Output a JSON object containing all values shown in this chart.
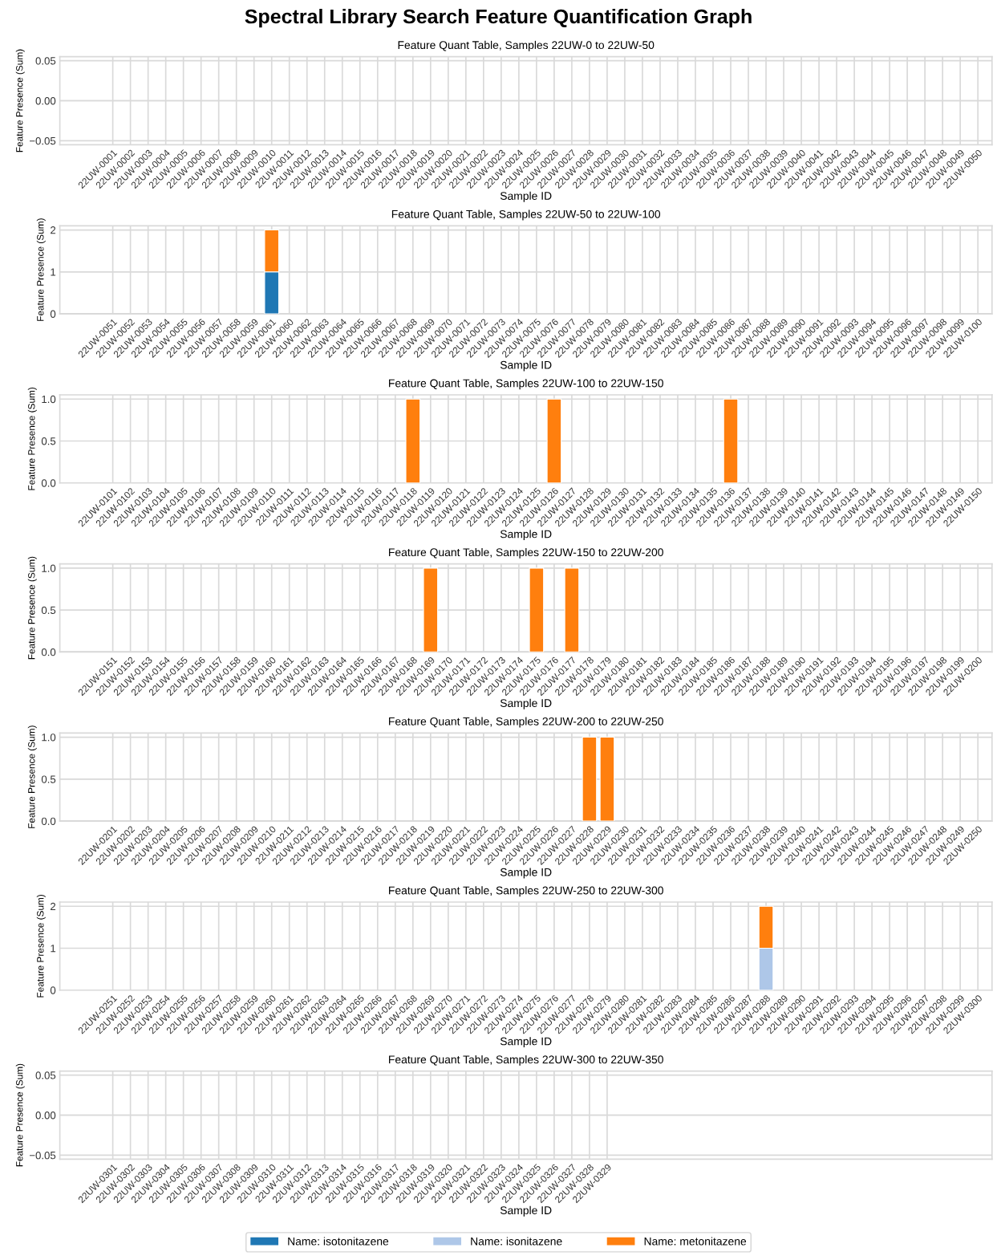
{
  "chart_data": [
    {
      "type": "bar",
      "stacked": true,
      "title": "Feature Quant Table, Samples 22UW-0 to 22UW-50",
      "xlabel": "Sample ID",
      "ylabel": "Feature Presence (Sum)",
      "annotations": [
        "Spectral Library Search Feature Quantification Graph"
      ],
      "grid": true,
      "categories": [
        "22UW-0001",
        "22UW-0002",
        "22UW-0003",
        "22UW-0004",
        "22UW-0005",
        "22UW-0006",
        "22UW-0007",
        "22UW-0008",
        "22UW-0009",
        "22UW-0010",
        "22UW-0011",
        "22UW-0012",
        "22UW-0013",
        "22UW-0014",
        "22UW-0015",
        "22UW-0016",
        "22UW-0017",
        "22UW-0018",
        "22UW-0019",
        "22UW-0020",
        "22UW-0021",
        "22UW-0022",
        "22UW-0023",
        "22UW-0024",
        "22UW-0025",
        "22UW-0026",
        "22UW-0027",
        "22UW-0028",
        "22UW-0029",
        "22UW-0030",
        "22UW-0031",
        "22UW-0032",
        "22UW-0033",
        "22UW-0034",
        "22UW-0035",
        "22UW-0036",
        "22UW-0037",
        "22UW-0038",
        "22UW-0039",
        "22UW-0040",
        "22UW-0041",
        "22UW-0042",
        "22UW-0043",
        "22UW-0044",
        "22UW-0045",
        "22UW-0046",
        "22UW-0047",
        "22UW-0048",
        "22UW-0049",
        "22UW-0050"
      ],
      "ylim": [
        -0.055,
        0.055
      ],
      "yticks": [
        {
          "value": -0.05,
          "label": "−0.05"
        },
        {
          "value": 0,
          "label": "0.00"
        },
        {
          "value": 0.05,
          "label": "0.05"
        }
      ],
      "series": [
        {
          "color": "#1f77b4",
          "values": [
            0,
            0,
            0,
            0,
            0,
            0,
            0,
            0,
            0,
            0,
            0,
            0,
            0,
            0,
            0,
            0,
            0,
            0,
            0,
            0,
            0,
            0,
            0,
            0,
            0,
            0,
            0,
            0,
            0,
            0,
            0,
            0,
            0,
            0,
            0,
            0,
            0,
            0,
            0,
            0,
            0,
            0,
            0,
            0,
            0,
            0,
            0,
            0,
            0,
            0
          ]
        },
        {
          "color": "#aec7e8",
          "values": [
            0,
            0,
            0,
            0,
            0,
            0,
            0,
            0,
            0,
            0,
            0,
            0,
            0,
            0,
            0,
            0,
            0,
            0,
            0,
            0,
            0,
            0,
            0,
            0,
            0,
            0,
            0,
            0,
            0,
            0,
            0,
            0,
            0,
            0,
            0,
            0,
            0,
            0,
            0,
            0,
            0,
            0,
            0,
            0,
            0,
            0,
            0,
            0,
            0,
            0
          ]
        },
        {
          "color": "#ff7f0e",
          "values": [
            0,
            0,
            0,
            0,
            0,
            0,
            0,
            0,
            0,
            0,
            0,
            0,
            0,
            0,
            0,
            0,
            0,
            0,
            0,
            0,
            0,
            0,
            0,
            0,
            0,
            0,
            0,
            0,
            0,
            0,
            0,
            0,
            0,
            0,
            0,
            0,
            0,
            0,
            0,
            0,
            0,
            0,
            0,
            0,
            0,
            0,
            0,
            0,
            0,
            0
          ]
        }
      ]
    },
    {
      "type": "bar",
      "stacked": true,
      "title": "Feature Quant Table, Samples 22UW-50 to 22UW-100",
      "xlabel": "Sample ID",
      "ylabel": "Feature Presence (Sum)",
      "grid": true,
      "categories": [
        "22UW-0051",
        "22UW-0052",
        "22UW-0053",
        "22UW-0054",
        "22UW-0055",
        "22UW-0056",
        "22UW-0057",
        "22UW-0058",
        "22UW-0059",
        "22UW-0061",
        "22UW-0060",
        "22UW-0062",
        "22UW-0063",
        "22UW-0064",
        "22UW-0065",
        "22UW-0066",
        "22UW-0067",
        "22UW-0068",
        "22UW-0069",
        "22UW-0070",
        "22UW-0071",
        "22UW-0072",
        "22UW-0073",
        "22UW-0074",
        "22UW-0075",
        "22UW-0076",
        "22UW-0077",
        "22UW-0078",
        "22UW-0079",
        "22UW-0080",
        "22UW-0081",
        "22UW-0082",
        "22UW-0083",
        "22UW-0084",
        "22UW-0085",
        "22UW-0086",
        "22UW-0087",
        "22UW-0088",
        "22UW-0089",
        "22UW-0090",
        "22UW-0091",
        "22UW-0092",
        "22UW-0093",
        "22UW-0094",
        "22UW-0095",
        "22UW-0096",
        "22UW-0097",
        "22UW-0098",
        "22UW-0099",
        "22UW-0100"
      ],
      "ylim": [
        0,
        2.1
      ],
      "yticks": [
        0,
        1,
        2
      ],
      "series": [
        {
          "color": "#1f77b4",
          "values": [
            0,
            0,
            0,
            0,
            0,
            0,
            0,
            0,
            0,
            1,
            0,
            0,
            0,
            0,
            0,
            0,
            0,
            0,
            0,
            0,
            0,
            0,
            0,
            0,
            0,
            0,
            0,
            0,
            0,
            0,
            0,
            0,
            0,
            0,
            0,
            0,
            0,
            0,
            0,
            0,
            0,
            0,
            0,
            0,
            0,
            0,
            0,
            0,
            0,
            0
          ]
        },
        {
          "color": "#aec7e8",
          "values": [
            0,
            0,
            0,
            0,
            0,
            0,
            0,
            0,
            0,
            0,
            0,
            0,
            0,
            0,
            0,
            0,
            0,
            0,
            0,
            0,
            0,
            0,
            0,
            0,
            0,
            0,
            0,
            0,
            0,
            0,
            0,
            0,
            0,
            0,
            0,
            0,
            0,
            0,
            0,
            0,
            0,
            0,
            0,
            0,
            0,
            0,
            0,
            0,
            0,
            0
          ]
        },
        {
          "color": "#ff7f0e",
          "values": [
            0,
            0,
            0,
            0,
            0,
            0,
            0,
            0,
            0,
            1,
            0,
            0,
            0,
            0,
            0,
            0,
            0,
            0,
            0,
            0,
            0,
            0,
            0,
            0,
            0,
            0,
            0,
            0,
            0,
            0,
            0,
            0,
            0,
            0,
            0,
            0,
            0,
            0,
            0,
            0,
            0,
            0,
            0,
            0,
            0,
            0,
            0,
            0,
            0,
            0
          ]
        }
      ]
    },
    {
      "type": "bar",
      "stacked": true,
      "title": "Feature Quant Table, Samples 22UW-100 to 22UW-150",
      "xlabel": "Sample ID",
      "ylabel": "Feature Presence (Sum)",
      "grid": true,
      "categories": [
        "22UW-0101",
        "22UW-0102",
        "22UW-0103",
        "22UW-0104",
        "22UW-0105",
        "22UW-0106",
        "22UW-0107",
        "22UW-0108",
        "22UW-0109",
        "22UW-0110",
        "22UW-0111",
        "22UW-0112",
        "22UW-0113",
        "22UW-0114",
        "22UW-0115",
        "22UW-0116",
        "22UW-0117",
        "22UW-0118",
        "22UW-0119",
        "22UW-0120",
        "22UW-0121",
        "22UW-0122",
        "22UW-0123",
        "22UW-0124",
        "22UW-0125",
        "22UW-0126",
        "22UW-0127",
        "22UW-0128",
        "22UW-0129",
        "22UW-0130",
        "22UW-0131",
        "22UW-0132",
        "22UW-0133",
        "22UW-0134",
        "22UW-0135",
        "22UW-0136",
        "22UW-0137",
        "22UW-0138",
        "22UW-0139",
        "22UW-0140",
        "22UW-0141",
        "22UW-0142",
        "22UW-0143",
        "22UW-0144",
        "22UW-0145",
        "22UW-0146",
        "22UW-0147",
        "22UW-0148",
        "22UW-0149",
        "22UW-0150"
      ],
      "ylim": [
        0,
        1.05
      ],
      "yticks": [
        {
          "value": 0,
          "label": "0.0"
        },
        {
          "value": 0.5,
          "label": "0.5"
        },
        {
          "value": 1,
          "label": "1.0"
        }
      ],
      "series": [
        {
          "color": "#1f77b4",
          "values": [
            0,
            0,
            0,
            0,
            0,
            0,
            0,
            0,
            0,
            0,
            0,
            0,
            0,
            0,
            0,
            0,
            0,
            0,
            0,
            0,
            0,
            0,
            0,
            0,
            0,
            0,
            0,
            0,
            0,
            0,
            0,
            0,
            0,
            0,
            0,
            0,
            0,
            0,
            0,
            0,
            0,
            0,
            0,
            0,
            0,
            0,
            0,
            0,
            0,
            0
          ]
        },
        {
          "color": "#aec7e8",
          "values": [
            0,
            0,
            0,
            0,
            0,
            0,
            0,
            0,
            0,
            0,
            0,
            0,
            0,
            0,
            0,
            0,
            0,
            0,
            0,
            0,
            0,
            0,
            0,
            0,
            0,
            0,
            0,
            0,
            0,
            0,
            0,
            0,
            0,
            0,
            0,
            0,
            0,
            0,
            0,
            0,
            0,
            0,
            0,
            0,
            0,
            0,
            0,
            0,
            0,
            0
          ]
        },
        {
          "color": "#ff7f0e",
          "values": [
            0,
            0,
            0,
            0,
            0,
            0,
            0,
            0,
            0,
            0,
            0,
            0,
            0,
            0,
            0,
            0,
            0,
            1,
            0,
            0,
            0,
            0,
            0,
            0,
            0,
            1,
            0,
            0,
            0,
            0,
            0,
            0,
            0,
            0,
            0,
            1,
            0,
            0,
            0,
            0,
            0,
            0,
            0,
            0,
            0,
            0,
            0,
            0,
            0,
            0
          ]
        }
      ]
    },
    {
      "type": "bar",
      "stacked": true,
      "title": "Feature Quant Table, Samples 22UW-150 to 22UW-200",
      "xlabel": "Sample ID",
      "ylabel": "Feature Presence (Sum)",
      "grid": true,
      "categories": [
        "22UW-0151",
        "22UW-0152",
        "22UW-0153",
        "22UW-0154",
        "22UW-0155",
        "22UW-0156",
        "22UW-0157",
        "22UW-0158",
        "22UW-0159",
        "22UW-0160",
        "22UW-0161",
        "22UW-0162",
        "22UW-0163",
        "22UW-0164",
        "22UW-0165",
        "22UW-0166",
        "22UW-0167",
        "22UW-0168",
        "22UW-0169",
        "22UW-0170",
        "22UW-0171",
        "22UW-0172",
        "22UW-0173",
        "22UW-0174",
        "22UW-0175",
        "22UW-0176",
        "22UW-0177",
        "22UW-0178",
        "22UW-0179",
        "22UW-0180",
        "22UW-0181",
        "22UW-0182",
        "22UW-0183",
        "22UW-0184",
        "22UW-0185",
        "22UW-0186",
        "22UW-0187",
        "22UW-0188",
        "22UW-0189",
        "22UW-0190",
        "22UW-0191",
        "22UW-0192",
        "22UW-0193",
        "22UW-0194",
        "22UW-0195",
        "22UW-0196",
        "22UW-0197",
        "22UW-0198",
        "22UW-0199",
        "22UW-0200"
      ],
      "ylim": [
        0,
        1.05
      ],
      "yticks": [
        {
          "value": 0,
          "label": "0.0"
        },
        {
          "value": 0.5,
          "label": "0.5"
        },
        {
          "value": 1,
          "label": "1.0"
        }
      ],
      "series": [
        {
          "color": "#1f77b4",
          "values": [
            0,
            0,
            0,
            0,
            0,
            0,
            0,
            0,
            0,
            0,
            0,
            0,
            0,
            0,
            0,
            0,
            0,
            0,
            0,
            0,
            0,
            0,
            0,
            0,
            0,
            0,
            0,
            0,
            0,
            0,
            0,
            0,
            0,
            0,
            0,
            0,
            0,
            0,
            0,
            0,
            0,
            0,
            0,
            0,
            0,
            0,
            0,
            0,
            0,
            0
          ]
        },
        {
          "color": "#aec7e8",
          "values": [
            0,
            0,
            0,
            0,
            0,
            0,
            0,
            0,
            0,
            0,
            0,
            0,
            0,
            0,
            0,
            0,
            0,
            0,
            0,
            0,
            0,
            0,
            0,
            0,
            0,
            0,
            0,
            0,
            0,
            0,
            0,
            0,
            0,
            0,
            0,
            0,
            0,
            0,
            0,
            0,
            0,
            0,
            0,
            0,
            0,
            0,
            0,
            0,
            0,
            0
          ]
        },
        {
          "color": "#ff7f0e",
          "values": [
            0,
            0,
            0,
            0,
            0,
            0,
            0,
            0,
            0,
            0,
            0,
            0,
            0,
            0,
            0,
            0,
            0,
            0,
            1,
            0,
            0,
            0,
            0,
            0,
            1,
            0,
            1,
            0,
            0,
            0,
            0,
            0,
            0,
            0,
            0,
            0,
            0,
            0,
            0,
            0,
            0,
            0,
            0,
            0,
            0,
            0,
            0,
            0,
            0,
            0
          ]
        }
      ]
    },
    {
      "type": "bar",
      "stacked": true,
      "title": "Feature Quant Table, Samples 22UW-200 to 22UW-250",
      "xlabel": "Sample ID",
      "ylabel": "Feature Presence (Sum)",
      "grid": true,
      "categories": [
        "22UW-0201",
        "22UW-0202",
        "22UW-0203",
        "22UW-0204",
        "22UW-0205",
        "22UW-0206",
        "22UW-0207",
        "22UW-0208",
        "22UW-0209",
        "22UW-0210",
        "22UW-0211",
        "22UW-0212",
        "22UW-0213",
        "22UW-0214",
        "22UW-0215",
        "22UW-0216",
        "22UW-0217",
        "22UW-0218",
        "22UW-0219",
        "22UW-0220",
        "22UW-0221",
        "22UW-0222",
        "22UW-0223",
        "22UW-0224",
        "22UW-0225",
        "22UW-0226",
        "22UW-0227",
        "22UW-0228",
        "22UW-0229",
        "22UW-0230",
        "22UW-0231",
        "22UW-0232",
        "22UW-0233",
        "22UW-0234",
        "22UW-0235",
        "22UW-0236",
        "22UW-0237",
        "22UW-0238",
        "22UW-0239",
        "22UW-0240",
        "22UW-0241",
        "22UW-0242",
        "22UW-0243",
        "22UW-0244",
        "22UW-0245",
        "22UW-0246",
        "22UW-0247",
        "22UW-0248",
        "22UW-0249",
        "22UW-0250"
      ],
      "ylim": [
        0,
        1.05
      ],
      "yticks": [
        {
          "value": 0,
          "label": "0.0"
        },
        {
          "value": 0.5,
          "label": "0.5"
        },
        {
          "value": 1,
          "label": "1.0"
        }
      ],
      "series": [
        {
          "color": "#1f77b4",
          "values": [
            0,
            0,
            0,
            0,
            0,
            0,
            0,
            0,
            0,
            0,
            0,
            0,
            0,
            0,
            0,
            0,
            0,
            0,
            0,
            0,
            0,
            0,
            0,
            0,
            0,
            0,
            0,
            0,
            0,
            0,
            0,
            0,
            0,
            0,
            0,
            0,
            0,
            0,
            0,
            0,
            0,
            0,
            0,
            0,
            0,
            0,
            0,
            0,
            0,
            0
          ]
        },
        {
          "color": "#aec7e8",
          "values": [
            0,
            0,
            0,
            0,
            0,
            0,
            0,
            0,
            0,
            0,
            0,
            0,
            0,
            0,
            0,
            0,
            0,
            0,
            0,
            0,
            0,
            0,
            0,
            0,
            0,
            0,
            0,
            0,
            0,
            0,
            0,
            0,
            0,
            0,
            0,
            0,
            0,
            0,
            0,
            0,
            0,
            0,
            0,
            0,
            0,
            0,
            0,
            0,
            0,
            0
          ]
        },
        {
          "color": "#ff7f0e",
          "values": [
            0,
            0,
            0,
            0,
            0,
            0,
            0,
            0,
            0,
            0,
            0,
            0,
            0,
            0,
            0,
            0,
            0,
            0,
            0,
            0,
            0,
            0,
            0,
            0,
            0,
            0,
            0,
            1,
            1,
            0,
            0,
            0,
            0,
            0,
            0,
            0,
            0,
            0,
            0,
            0,
            0,
            0,
            0,
            0,
            0,
            0,
            0,
            0,
            0,
            0
          ]
        }
      ]
    },
    {
      "type": "bar",
      "stacked": true,
      "title": "Feature Quant Table, Samples 22UW-250 to 22UW-300",
      "xlabel": "Sample ID",
      "ylabel": "Feature Presence (Sum)",
      "grid": true,
      "categories": [
        "22UW-0251",
        "22UW-0252",
        "22UW-0253",
        "22UW-0254",
        "22UW-0255",
        "22UW-0256",
        "22UW-0257",
        "22UW-0258",
        "22UW-0259",
        "22UW-0260",
        "22UW-0261",
        "22UW-0262",
        "22UW-0263",
        "22UW-0264",
        "22UW-0265",
        "22UW-0266",
        "22UW-0267",
        "22UW-0268",
        "22UW-0269",
        "22UW-0270",
        "22UW-0271",
        "22UW-0272",
        "22UW-0273",
        "22UW-0274",
        "22UW-0275",
        "22UW-0276",
        "22UW-0277",
        "22UW-0278",
        "22UW-0279",
        "22UW-0280",
        "22UW-0281",
        "22UW-0282",
        "22UW-0283",
        "22UW-0284",
        "22UW-0285",
        "22UW-0286",
        "22UW-0287",
        "22UW-0288",
        "22UW-0289",
        "22UW-0290",
        "22UW-0291",
        "22UW-0292",
        "22UW-0293",
        "22UW-0294",
        "22UW-0295",
        "22UW-0296",
        "22UW-0297",
        "22UW-0298",
        "22UW-0299",
        "22UW-0300"
      ],
      "ylim": [
        0,
        2.1
      ],
      "yticks": [
        0,
        1,
        2
      ],
      "series": [
        {
          "color": "#1f77b4",
          "values": [
            0,
            0,
            0,
            0,
            0,
            0,
            0,
            0,
            0,
            0,
            0,
            0,
            0,
            0,
            0,
            0,
            0,
            0,
            0,
            0,
            0,
            0,
            0,
            0,
            0,
            0,
            0,
            0,
            0,
            0,
            0,
            0,
            0,
            0,
            0,
            0,
            0,
            0,
            0,
            0,
            0,
            0,
            0,
            0,
            0,
            0,
            0,
            0,
            0,
            0
          ]
        },
        {
          "color": "#aec7e8",
          "values": [
            0,
            0,
            0,
            0,
            0,
            0,
            0,
            0,
            0,
            0,
            0,
            0,
            0,
            0,
            0,
            0,
            0,
            0,
            0,
            0,
            0,
            0,
            0,
            0,
            0,
            0,
            0,
            0,
            0,
            0,
            0,
            0,
            0,
            0,
            0,
            0,
            0,
            1,
            0,
            0,
            0,
            0,
            0,
            0,
            0,
            0,
            0,
            0,
            0,
            0
          ]
        },
        {
          "color": "#ff7f0e",
          "values": [
            0,
            0,
            0,
            0,
            0,
            0,
            0,
            0,
            0,
            0,
            0,
            0,
            0,
            0,
            0,
            0,
            0,
            0,
            0,
            0,
            0,
            0,
            0,
            0,
            0,
            0,
            0,
            0,
            0,
            0,
            0,
            0,
            0,
            0,
            0,
            0,
            0,
            1,
            0,
            0,
            0,
            0,
            0,
            0,
            0,
            0,
            0,
            0,
            0,
            0
          ]
        }
      ]
    },
    {
      "type": "bar",
      "stacked": true,
      "title": "Feature Quant Table, Samples 22UW-300 to 22UW-350",
      "xlabel": "Sample ID",
      "ylabel": "Feature Presence (Sum)",
      "grid": true,
      "legend": "bottom",
      "categories": [
        "22UW-0301",
        "22UW-0302",
        "22UW-0303",
        "22UW-0304",
        "22UW-0305",
        "22UW-0306",
        "22UW-0307",
        "22UW-0308",
        "22UW-0309",
        "22UW-0310",
        "22UW-0311",
        "22UW-0312",
        "22UW-0313",
        "22UW-0314",
        "22UW-0315",
        "22UW-0316",
        "22UW-0317",
        "22UW-0318",
        "22UW-0319",
        "22UW-0320",
        "22UW-0321",
        "22UW-0322",
        "22UW-0323",
        "22UW-0324",
        "22UW-0325",
        "22UW-0326",
        "22UW-0327",
        "22UW-0328",
        "22UW-0329"
      ],
      "ylim": [
        -0.055,
        0.055
      ],
      "yticks": [
        {
          "value": -0.05,
          "label": "−0.05"
        },
        {
          "value": 0,
          "label": "0.00"
        },
        {
          "value": 0.05,
          "label": "0.05"
        }
      ],
      "series": [
        {
          "name": "Name: isotonitazene",
          "color": "#1f77b4",
          "values": [
            0,
            0,
            0,
            0,
            0,
            0,
            0,
            0,
            0,
            0,
            0,
            0,
            0,
            0,
            0,
            0,
            0,
            0,
            0,
            0,
            0,
            0,
            0,
            0,
            0,
            0,
            0,
            0,
            0
          ]
        },
        {
          "name": "Name: isonitazene",
          "color": "#aec7e8",
          "values": [
            0,
            0,
            0,
            0,
            0,
            0,
            0,
            0,
            0,
            0,
            0,
            0,
            0,
            0,
            0,
            0,
            0,
            0,
            0,
            0,
            0,
            0,
            0,
            0,
            0,
            0,
            0,
            0,
            0
          ]
        },
        {
          "name": "Name: metonitazene",
          "color": "#ff7f0e",
          "values": [
            0,
            0,
            0,
            0,
            0,
            0,
            0,
            0,
            0,
            0,
            0,
            0,
            0,
            0,
            0,
            0,
            0,
            0,
            0,
            0,
            0,
            0,
            0,
            0,
            0,
            0,
            0,
            0,
            0
          ]
        }
      ]
    }
  ]
}
